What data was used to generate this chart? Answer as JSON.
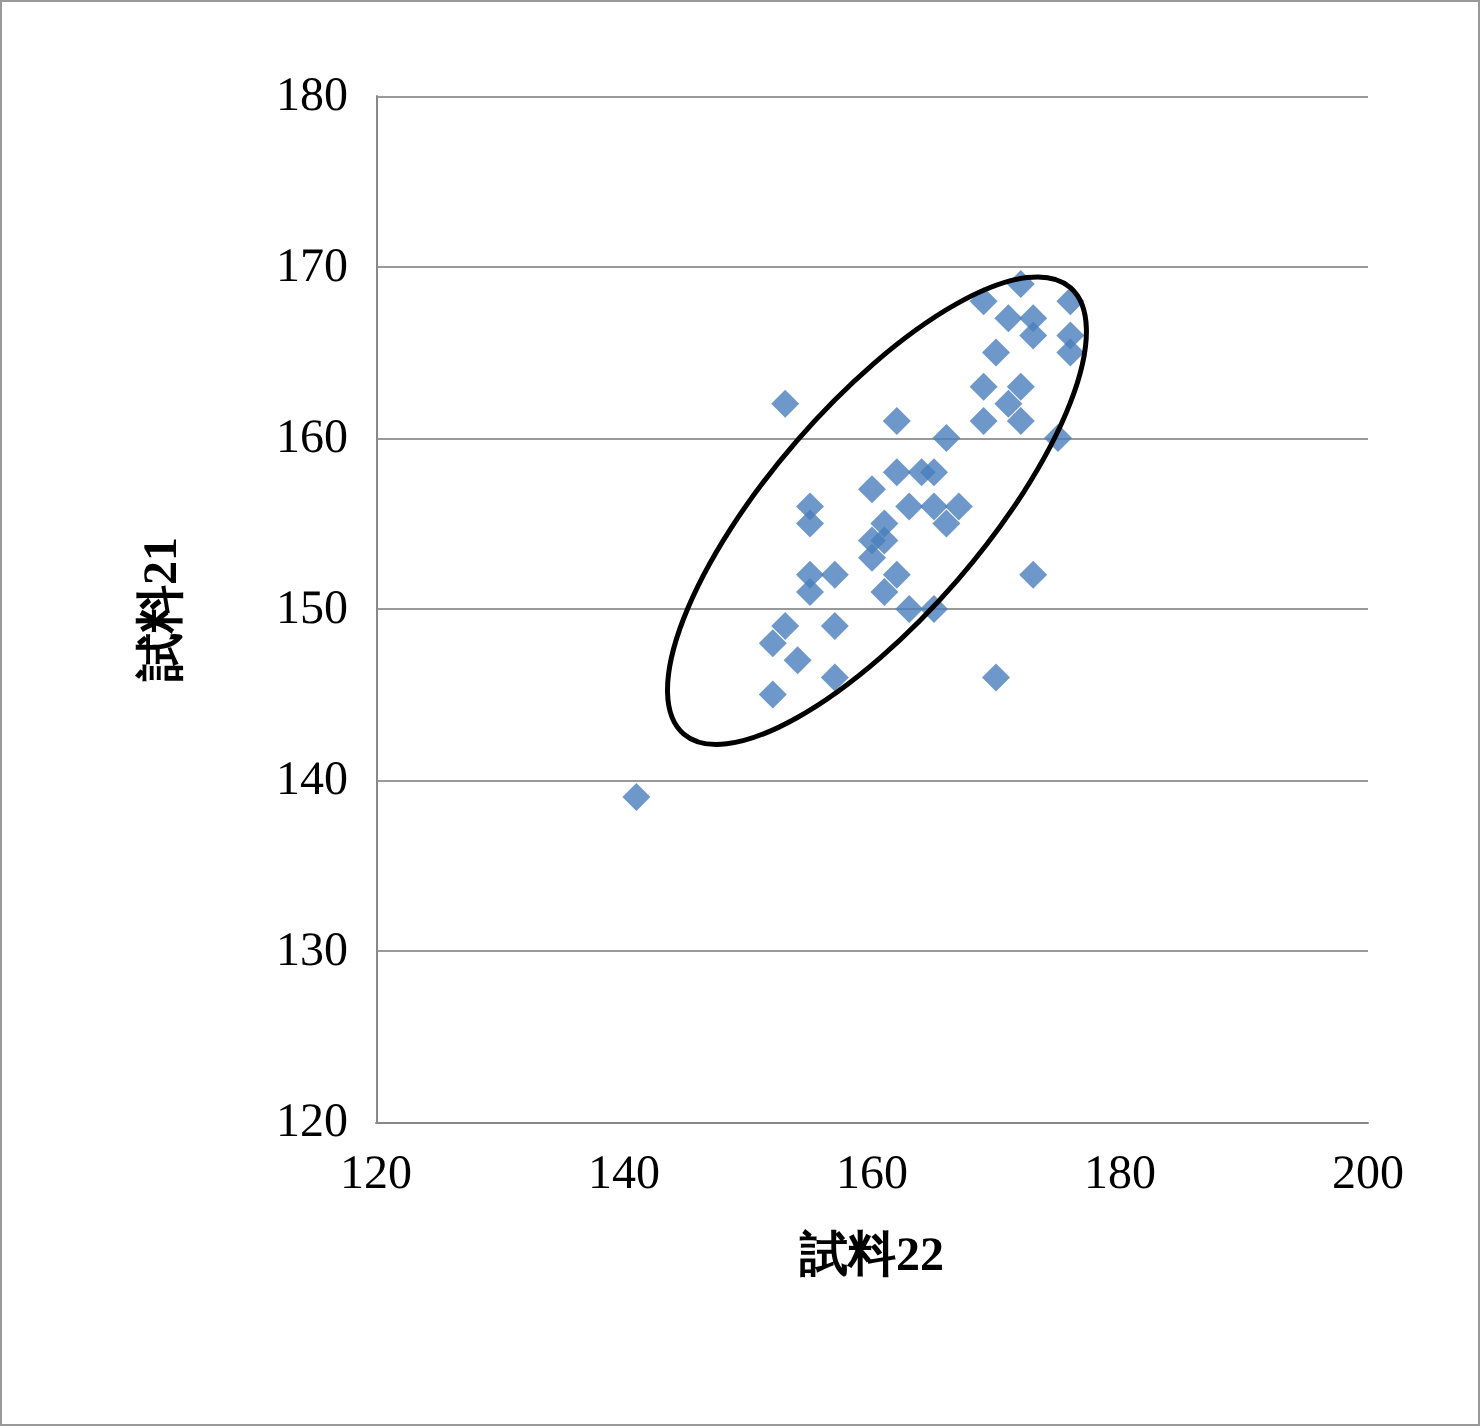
{
  "chart_data": {
    "type": "scatter",
    "xlabel": "試料22",
    "ylabel": "試料21",
    "marker": "diamond",
    "grid": "y",
    "xlim": [
      120,
      200
    ],
    "xticks": [
      120,
      140,
      160,
      180,
      200
    ],
    "ylim": [
      120,
      180
    ],
    "yticks": [
      120,
      130,
      140,
      150,
      160,
      170,
      180
    ],
    "series": [
      {
        "color": "#4a7ebb",
        "x": [
          153,
          141,
          169,
          172,
          176,
          171,
          173,
          173,
          176,
          176,
          170,
          169,
          172,
          171,
          172,
          169,
          162,
          166,
          175,
          160,
          162,
          164,
          165,
          155,
          163,
          165,
          167,
          166,
          155,
          161,
          160,
          161,
          160,
          155,
          157,
          162,
          173,
          155,
          161,
          163,
          165,
          153,
          157,
          152,
          154,
          152,
          157,
          170
        ],
        "values": [
          162,
          139,
          168,
          169,
          168,
          167,
          167,
          166,
          166,
          165,
          165,
          163,
          163,
          162,
          161,
          161,
          161,
          160,
          160,
          157,
          158,
          158,
          158,
          156,
          156,
          156,
          156,
          155,
          155,
          155,
          154,
          154,
          153,
          152,
          152,
          152,
          152,
          151,
          151,
          150,
          150,
          149,
          149,
          148,
          147,
          145,
          146,
          146
        ]
      }
    ]
  }
}
